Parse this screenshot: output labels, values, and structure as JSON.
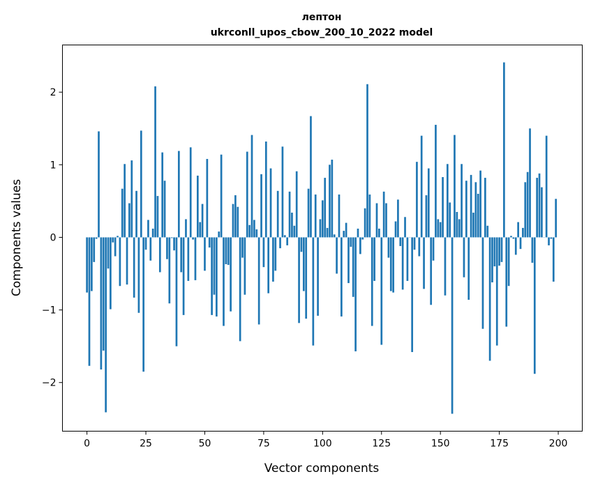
{
  "chart_data": {
    "type": "bar",
    "title": "лептон",
    "subtitle": "ukrconll_upos_cbow_200_10_2022 model",
    "xlabel": "Vector components",
    "ylabel": "Components values",
    "xlim": [
      -10.4,
      210.2
    ],
    "ylim": [
      -2.67,
      2.65
    ],
    "xticks": [
      0,
      25,
      50,
      75,
      100,
      125,
      150,
      175,
      200
    ],
    "xtick_labels": [
      "0",
      "25",
      "50",
      "75",
      "100",
      "125",
      "150",
      "175",
      "200"
    ],
    "yticks": [
      -2,
      -1,
      0,
      1,
      2
    ],
    "ytick_labels": [
      "−2",
      "−1",
      "0",
      "1",
      "2"
    ],
    "grid": false,
    "bar_color": "#1f77b4",
    "values": [
      -0.76,
      -1.77,
      -0.74,
      -0.34,
      -0.02,
      1.46,
      -1.82,
      -1.56,
      -2.41,
      -0.43,
      -0.99,
      -0.07,
      -0.26,
      0.02,
      -0.67,
      0.67,
      1.01,
      -0.65,
      0.47,
      1.06,
      -0.83,
      0.64,
      -1.04,
      1.47,
      -1.85,
      -0.17,
      0.24,
      -0.32,
      0.12,
      2.08,
      0.57,
      -0.48,
      1.17,
      0.78,
      -0.3,
      -0.91,
      -0.01,
      -0.18,
      -1.5,
      1.19,
      -0.48,
      -1.07,
      0.25,
      -0.6,
      1.24,
      -0.03,
      -0.59,
      0.85,
      0.21,
      0.46,
      -0.46,
      1.08,
      -0.14,
      -1.07,
      -0.79,
      -1.09,
      0.08,
      1.14,
      -1.22,
      -0.37,
      -0.38,
      -1.02,
      0.46,
      0.58,
      0.42,
      -1.43,
      -0.28,
      -0.79,
      1.18,
      0.17,
      1.41,
      0.24,
      0.11,
      -1.2,
      0.87,
      -0.41,
      1.32,
      -0.77,
      0.95,
      -0.61,
      -0.46,
      0.64,
      -0.15,
      1.25,
      0.03,
      -0.11,
      0.63,
      0.34,
      0.16,
      0.91,
      -1.18,
      -0.2,
      -0.74,
      -1.12,
      0.67,
      1.67,
      -1.49,
      0.59,
      -1.08,
      0.25,
      0.51,
      0.82,
      0.13,
      1.0,
      1.07,
      0.04,
      -0.5,
      0.59,
      -1.09,
      0.09,
      0.2,
      -0.63,
      -0.13,
      -0.82,
      -1.57,
      0.12,
      -0.23,
      -0.03,
      0.4,
      2.11,
      0.59,
      -1.22,
      -0.6,
      0.47,
      0.12,
      -1.48,
      0.63,
      0.47,
      -0.28,
      -0.74,
      -0.76,
      0.22,
      0.52,
      -0.12,
      -0.72,
      0.28,
      -0.6,
      0.0,
      -1.58,
      -0.17,
      1.04,
      -0.26,
      1.4,
      -0.71,
      0.58,
      0.95,
      -0.93,
      -0.32,
      1.55,
      0.25,
      0.21,
      0.83,
      -0.8,
      1.01,
      0.48,
      -2.43,
      1.41,
      0.35,
      0.25,
      1.01,
      -0.55,
      0.78,
      -0.86,
      0.86,
      0.34,
      0.76,
      0.6,
      0.92,
      -1.26,
      0.82,
      0.16,
      -1.7,
      -0.62,
      -0.4,
      -1.49,
      -0.39,
      -0.34,
      2.41,
      -1.23,
      -0.67,
      0.02,
      -0.02,
      -0.24,
      0.21,
      -0.16,
      0.13,
      0.76,
      0.9,
      1.5,
      -0.35,
      -1.88,
      0.82,
      0.88,
      0.69,
      0.0,
      1.4,
      -0.11,
      -0.02,
      -0.61,
      0.53
    ]
  }
}
